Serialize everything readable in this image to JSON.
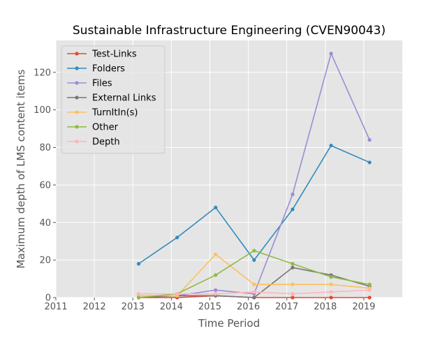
{
  "chart_data": {
    "type": "line",
    "title": "Sustainable Infrastructure Engineering (CVEN90043)",
    "xlabel": "Time Period",
    "ylabel": "Maximum depth of LMS content items",
    "xlim": [
      2011,
      2020
    ],
    "ylim": [
      0,
      137
    ],
    "xticks": [
      2011,
      2012,
      2013,
      2014,
      2015,
      2016,
      2017,
      2018,
      2019
    ],
    "yticks": [
      0,
      20,
      40,
      60,
      80,
      100,
      120
    ],
    "grid": true,
    "legend_position": "top-left",
    "x": [
      2013.15,
      2014.15,
      2015.15,
      2016.15,
      2017.15,
      2018.15,
      2019.15
    ],
    "series": [
      {
        "name": "Test-Links",
        "color": "#E24A33",
        "values": [
          0,
          0,
          1,
          0,
          0,
          0,
          0
        ]
      },
      {
        "name": "Folders",
        "color": "#348ABD",
        "values": [
          18,
          32,
          48,
          20,
          47,
          81,
          72
        ]
      },
      {
        "name": "Files",
        "color": "#988ED5",
        "values": [
          1,
          1,
          4,
          2,
          55,
          130,
          84
        ]
      },
      {
        "name": "External Links",
        "color": "#777777",
        "values": [
          0,
          1,
          1,
          0,
          16,
          12,
          6
        ]
      },
      {
        "name": "TurnItIn(s)",
        "color": "#FBC15E",
        "values": [
          1,
          1,
          23,
          7,
          7,
          7,
          5
        ]
      },
      {
        "name": "Other",
        "color": "#8EBA42",
        "values": [
          0,
          2,
          12,
          25,
          18,
          11,
          7
        ]
      },
      {
        "name": "Depth",
        "color": "#FFB5B8",
        "values": [
          2,
          2,
          2,
          3,
          2,
          3,
          4
        ]
      }
    ]
  }
}
